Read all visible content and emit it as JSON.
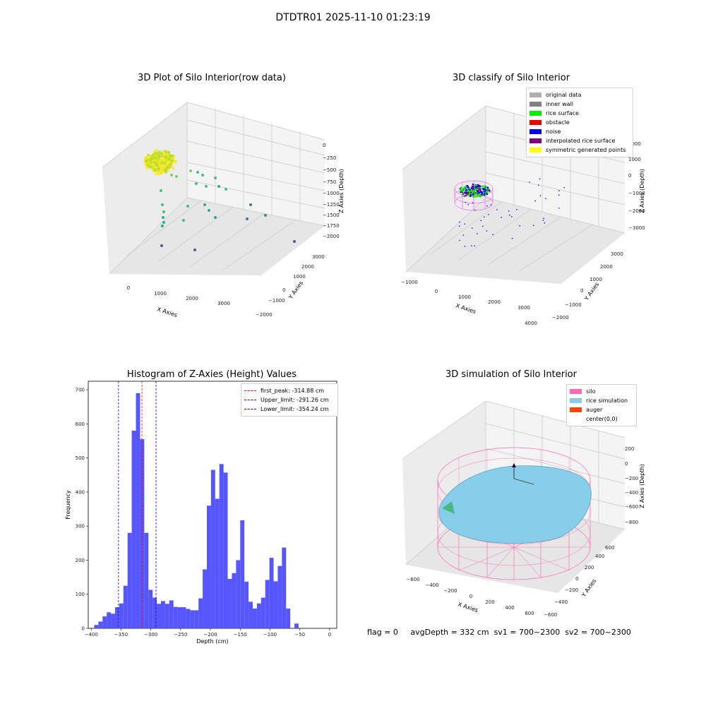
{
  "figure": {
    "suptitle": "DTDTR01 2025-11-10 01:23:19",
    "status": {
      "flag": "flag = 0",
      "avg": "avgDepth = 332 cm",
      "sv1": "sv1 = 700~2300",
      "sv2": "sv2 = 700~2300"
    }
  },
  "chart_data": [
    {
      "type": "scatter",
      "title": "3D Plot of Silo Interior(row data)",
      "xlabel": "X Axies",
      "ylabel": "Y Axies",
      "zlabel": "Z Axies (Depth)",
      "xticks": [
        "0",
        "1000",
        "2000",
        "3000"
      ],
      "yticks": [
        "−2000",
        "−1000",
        "0",
        "1000",
        "2000",
        "3000"
      ],
      "zticks": [
        "0",
        "−250",
        "−500",
        "−750",
        "−1000",
        "−1250",
        "−1500",
        "−1750",
        "−2000"
      ],
      "colormap": [
        "#fde725",
        "#b5de2b",
        "#6ece58",
        "#35b779",
        "#1f9e89",
        "#26828e",
        "#31688e",
        "#3e4989"
      ]
    },
    {
      "type": "scatter",
      "title": "3D classify of Silo Interior",
      "xlabel": "X Axies",
      "ylabel": "Y Axies",
      "zlabel": "Z Axies (Depth)",
      "xticks": [
        "−1000",
        "0",
        "1000",
        "2000",
        "3000",
        "4000"
      ],
      "yticks": [
        "−2000",
        "−1000",
        "0",
        "1000",
        "2000",
        "3000"
      ],
      "zticks": [
        "2000",
        "1000",
        "0",
        "−1000",
        "−2000",
        "−3000"
      ],
      "legend": [
        {
          "label": "original data",
          "color": "#b0b0b0"
        },
        {
          "label": "inner wall",
          "color": "#808080"
        },
        {
          "label": "rice surface",
          "color": "#00ee00"
        },
        {
          "label": "obstacle",
          "color": "#ee0000"
        },
        {
          "label": "noise",
          "color": "#0000ee"
        },
        {
          "label": "interpolated rice surface",
          "color": "#800080"
        },
        {
          "label": "symmetric generated points",
          "color": "#ffff00"
        }
      ]
    },
    {
      "type": "bar",
      "title": "Histogram of Z-Axies (Height) Values",
      "xlabel": "Depth (cm)",
      "ylabel": "Frequency",
      "xlim": [
        -405,
        12
      ],
      "ylim": [
        0,
        725
      ],
      "xticks": [
        -400,
        -350,
        -300,
        -250,
        -200,
        -150,
        -100,
        -50,
        0
      ],
      "yticks": [
        0,
        100,
        200,
        300,
        400,
        500,
        600,
        700
      ],
      "bar_color": "#4d4dff",
      "bins": [
        {
          "x0": -395,
          "x1": -388,
          "y": 10
        },
        {
          "x0": -388,
          "x1": -381,
          "y": 20
        },
        {
          "x0": -381,
          "x1": -374,
          "y": 35
        },
        {
          "x0": -374,
          "x1": -367,
          "y": 47
        },
        {
          "x0": -367,
          "x1": -360,
          "y": 43
        },
        {
          "x0": -360,
          "x1": -353,
          "y": 62
        },
        {
          "x0": -353,
          "x1": -346,
          "y": 73
        },
        {
          "x0": -346,
          "x1": -339,
          "y": 125
        },
        {
          "x0": -339,
          "x1": -332,
          "y": 280
        },
        {
          "x0": -332,
          "x1": -325,
          "y": 580
        },
        {
          "x0": -325,
          "x1": -318,
          "y": 690
        },
        {
          "x0": -318,
          "x1": -311,
          "y": 555
        },
        {
          "x0": -311,
          "x1": -304,
          "y": 280
        },
        {
          "x0": -304,
          "x1": -297,
          "y": 113
        },
        {
          "x0": -297,
          "x1": -290,
          "y": 90
        },
        {
          "x0": -290,
          "x1": -283,
          "y": 72
        },
        {
          "x0": -283,
          "x1": -276,
          "y": 80
        },
        {
          "x0": -276,
          "x1": -269,
          "y": 72
        },
        {
          "x0": -269,
          "x1": -262,
          "y": 82
        },
        {
          "x0": -262,
          "x1": -255,
          "y": 63
        },
        {
          "x0": -255,
          "x1": -248,
          "y": 62
        },
        {
          "x0": -248,
          "x1": -241,
          "y": 62
        },
        {
          "x0": -241,
          "x1": -234,
          "y": 57
        },
        {
          "x0": -234,
          "x1": -227,
          "y": 53
        },
        {
          "x0": -227,
          "x1": -220,
          "y": 53
        },
        {
          "x0": -220,
          "x1": -213,
          "y": 88
        },
        {
          "x0": -213,
          "x1": -206,
          "y": 173
        },
        {
          "x0": -206,
          "x1": -199,
          "y": 360
        },
        {
          "x0": -199,
          "x1": -192,
          "y": 465
        },
        {
          "x0": -192,
          "x1": -185,
          "y": 380
        },
        {
          "x0": -185,
          "x1": -178,
          "y": 482
        },
        {
          "x0": -178,
          "x1": -171,
          "y": 457
        },
        {
          "x0": -171,
          "x1": -164,
          "y": 145
        },
        {
          "x0": -164,
          "x1": -157,
          "y": 162
        },
        {
          "x0": -157,
          "x1": -150,
          "y": 200
        },
        {
          "x0": -150,
          "x1": -143,
          "y": 317
        },
        {
          "x0": -143,
          "x1": -136,
          "y": 137
        },
        {
          "x0": -136,
          "x1": -129,
          "y": 78
        },
        {
          "x0": -129,
          "x1": -122,
          "y": 58
        },
        {
          "x0": -122,
          "x1": -115,
          "y": 73
        },
        {
          "x0": -115,
          "x1": -108,
          "y": 90
        },
        {
          "x0": -108,
          "x1": -101,
          "y": 142
        },
        {
          "x0": -101,
          "x1": -94,
          "y": 207
        },
        {
          "x0": -94,
          "x1": -87,
          "y": 138
        },
        {
          "x0": -87,
          "x1": -80,
          "y": 183
        },
        {
          "x0": -80,
          "x1": -73,
          "y": 237
        },
        {
          "x0": -73,
          "x1": -66,
          "y": 58
        },
        {
          "x0": -59,
          "x1": -52,
          "y": 14
        }
      ],
      "vlines": [
        {
          "x": -314.88,
          "color": "#ff0000",
          "label": "first_peak: -314.88 cm"
        },
        {
          "x": -291.26,
          "color": "#0000ee",
          "label": "Upper_limit: -291.26 cm"
        },
        {
          "x": -354.24,
          "color": "#0000ee",
          "label": "Lower_limit: -354.24 cm"
        }
      ]
    },
    {
      "type": "area",
      "title": "3D simulation of Silo Interior",
      "xlabel": "X Axies",
      "ylabel": "Y Axies",
      "zlabel": "Z Axies (Depth)",
      "xticks": [
        "−600",
        "−400",
        "−200",
        "0",
        "200",
        "400",
        "600"
      ],
      "yticks": [
        "−600",
        "−400",
        "−200",
        "0",
        "200",
        "400",
        "600"
      ],
      "zticks": [
        "200",
        "0",
        "−200",
        "−400",
        "−600",
        "−800"
      ],
      "legend": [
        {
          "label": "silo",
          "color": "#ff69b4"
        },
        {
          "label": "rice simulation",
          "color": "#87ceeb"
        },
        {
          "label": "auger",
          "color": "#ff4500"
        },
        {
          "label": "center(0,0)",
          "color": "#ffffff"
        }
      ]
    }
  ]
}
